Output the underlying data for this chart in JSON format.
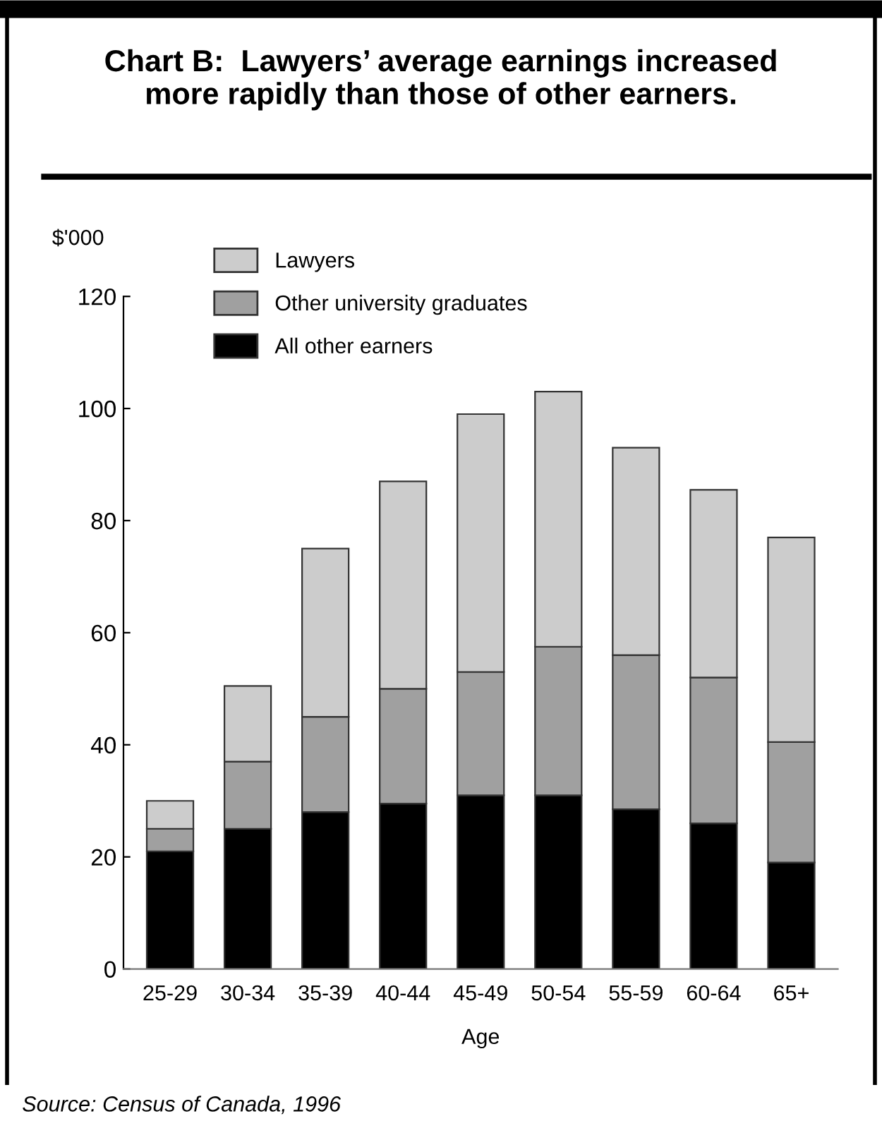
{
  "chart_data": {
    "type": "bar",
    "title": "Chart B:  Lawyers’ average earnings increased\nmore rapidly than those of other earners.",
    "ylabel": "$'000",
    "xlabel": "Age",
    "annotations": [
      "Source: Census of Canada, 1996"
    ],
    "categories": [
      "25-29",
      "30-34",
      "35-39",
      "40-44",
      "45-49",
      "50-54",
      "55-59",
      "60-64",
      "65+"
    ],
    "stacked": true,
    "legend": "top left",
    "grid": false,
    "ylim": [
      0,
      120
    ],
    "yticks": [
      0,
      20,
      40,
      60,
      80,
      100,
      120
    ],
    "series": [
      {
        "name": "All other earners",
        "color": "#000000",
        "values": [
          21,
          25,
          28,
          29.5,
          31,
          31,
          28.5,
          26,
          19
        ]
      },
      {
        "name": "Other university graduates",
        "color": "#a0a0a0",
        "values": [
          4,
          12,
          17,
          20.5,
          22,
          26.5,
          27.5,
          26,
          21.5
        ]
      },
      {
        "name": "Lawyers",
        "color": "#cccccc",
        "values": [
          5,
          13.5,
          30,
          37,
          46,
          45.5,
          37,
          33.5,
          36.5
        ]
      }
    ]
  }
}
